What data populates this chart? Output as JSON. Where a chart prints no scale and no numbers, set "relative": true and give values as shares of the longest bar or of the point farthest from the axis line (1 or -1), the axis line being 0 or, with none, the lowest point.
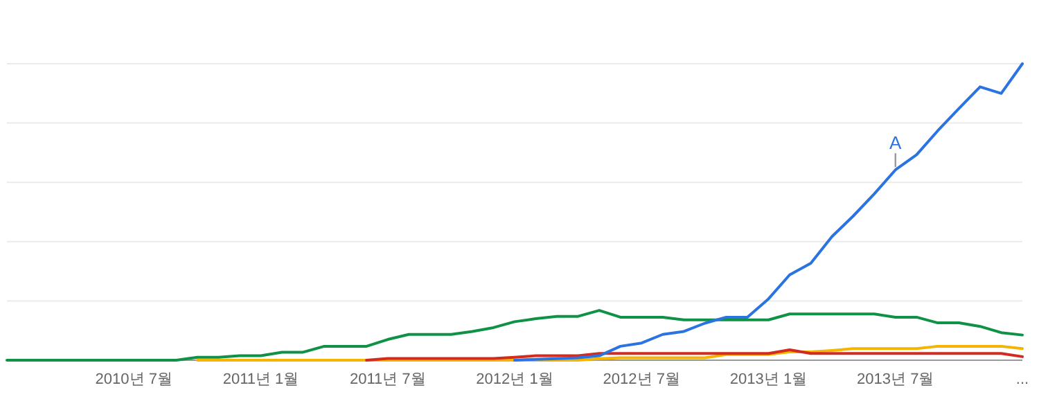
{
  "chart_data": {
    "type": "line",
    "relative": true,
    "grid": true,
    "marker": "none",
    "line_style": "solid",
    "x": [
      "2010-01",
      "2010-02",
      "2010-03",
      "2010-04",
      "2010-05",
      "2010-06",
      "2010-07",
      "2010-08",
      "2010-09",
      "2010-10",
      "2010-11",
      "2010-12",
      "2011-01",
      "2011-02",
      "2011-03",
      "2011-04",
      "2011-05",
      "2011-06",
      "2011-07",
      "2011-08",
      "2011-09",
      "2011-10",
      "2011-11",
      "2011-12",
      "2012-01",
      "2012-02",
      "2012-03",
      "2012-04",
      "2012-05",
      "2012-06",
      "2012-07",
      "2012-08",
      "2012-09",
      "2012-10",
      "2012-11",
      "2012-12",
      "2013-01",
      "2013-02",
      "2013-03",
      "2013-04",
      "2013-05",
      "2013-06",
      "2013-07",
      "2013-08",
      "2013-09",
      "2013-10",
      "2013-11",
      "2013-12",
      "2014-01"
    ],
    "xlim": [
      "2010-01",
      "2014-01"
    ],
    "xticks": [
      {
        "value": "2010-07",
        "label": "2010년 7월"
      },
      {
        "value": "2011-01",
        "label": "2011년 1월"
      },
      {
        "value": "2011-07",
        "label": "2011년 7월"
      },
      {
        "value": "2012-01",
        "label": "2012년 1월"
      },
      {
        "value": "2012-07",
        "label": "2012년 7월"
      },
      {
        "value": "2013-01",
        "label": "2013년 1월"
      },
      {
        "value": "2013-07",
        "label": "2013년 7월"
      },
      {
        "value": "2014-01",
        "label": "..."
      }
    ],
    "series": [
      {
        "color": "#0f9245",
        "values": [
          0,
          0,
          0,
          0,
          0,
          0,
          0,
          0,
          0,
          0.01,
          0.01,
          0.015,
          0.015,
          0.027,
          0.027,
          0.047,
          0.047,
          0.047,
          0.07,
          0.087,
          0.087,
          0.087,
          0.097,
          0.11,
          0.13,
          0.14,
          0.148,
          0.148,
          0.168,
          0.145,
          0.145,
          0.145,
          0.136,
          0.136,
          0.136,
          0.136,
          0.136,
          0.156,
          0.156,
          0.156,
          0.156,
          0.156,
          0.145,
          0.145,
          0.126,
          0.126,
          0.114,
          0.093,
          0.085
        ]
      },
      {
        "color": "#f4b400",
        "values": [
          null,
          null,
          null,
          null,
          null,
          null,
          null,
          null,
          null,
          0,
          0,
          0,
          0,
          0,
          0,
          0,
          0,
          0,
          0,
          0,
          0,
          0,
          0,
          0,
          0,
          0,
          0,
          0,
          0.005,
          0.008,
          0.008,
          0.008,
          0.008,
          0.008,
          0.019,
          0.019,
          0.019,
          0.028,
          0.028,
          0.033,
          0.039,
          0.039,
          0.039,
          0.039,
          0.047,
          0.047,
          0.047,
          0.047,
          0.039
        ]
      },
      {
        "color": "#d22b1f",
        "values": [
          null,
          null,
          null,
          null,
          null,
          null,
          null,
          null,
          null,
          null,
          null,
          null,
          null,
          null,
          null,
          null,
          null,
          0,
          0.006,
          0.006,
          0.006,
          0.006,
          0.006,
          0.006,
          0.01,
          0.015,
          0.015,
          0.015,
          0.023,
          0.023,
          0.023,
          0.023,
          0.023,
          0.023,
          0.023,
          0.023,
          0.023,
          0.035,
          0.023,
          0.023,
          0.023,
          0.023,
          0.023,
          0.023,
          0.023,
          0.023,
          0.023,
          0.023,
          0.012
        ]
      },
      {
        "color": "#2a73e0",
        "values": [
          null,
          null,
          null,
          null,
          null,
          null,
          null,
          null,
          null,
          null,
          null,
          null,
          null,
          null,
          null,
          null,
          null,
          null,
          null,
          null,
          null,
          null,
          null,
          null,
          0,
          0.003,
          0.005,
          0.008,
          0.015,
          0.047,
          0.058,
          0.087,
          0.097,
          0.125,
          0.145,
          0.145,
          0.207,
          0.288,
          0.327,
          0.417,
          0.486,
          0.561,
          0.642,
          0.693,
          0.774,
          0.849,
          0.922,
          0.9,
          1
        ]
      }
    ],
    "annotations": [
      {
        "text": "A",
        "x": "2013-07",
        "y": 0.642
      }
    ]
  }
}
